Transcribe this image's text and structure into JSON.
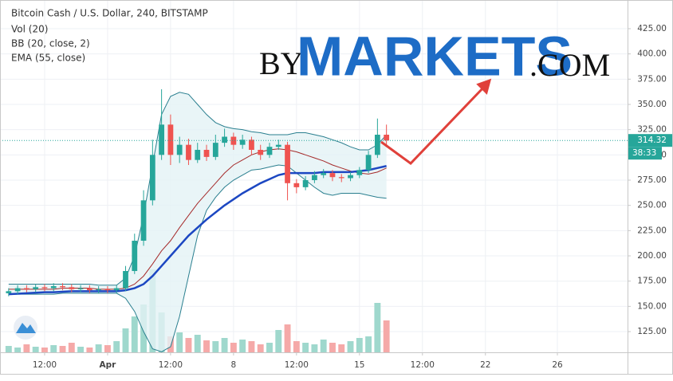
{
  "chart_data": {
    "type": "candlestick",
    "title": "Bitcoin Cash / U.S. Dollar, 240, BITSTAMP",
    "indicator_labels": [
      "Vol (20)",
      "BB (20, close, 2)",
      "EMA (55, close)"
    ],
    "watermark": {
      "prefix": "BY",
      "main": "MARKETS",
      "suffix": ".COM"
    },
    "current_price": 314.32,
    "countdown": "38:33",
    "x": [
      -5.5,
      -5,
      -4.5,
      -4,
      -3.5,
      -3,
      -2.5,
      -2,
      -1.5,
      -1,
      -0.5,
      0,
      0.5,
      1,
      1.5,
      2,
      2.5,
      3,
      3.5,
      4,
      4.5,
      5,
      5.5,
      6,
      6.5,
      7,
      7.5,
      8,
      8.5,
      9,
      9.5,
      10,
      10.5,
      11,
      11.5,
      12,
      12.5,
      13,
      13.5,
      14,
      14.5,
      15,
      15.5
    ],
    "open": [
      163,
      165,
      168,
      167,
      169,
      168,
      170,
      169,
      167,
      168,
      166,
      167,
      166,
      168,
      185,
      215,
      255,
      300,
      330,
      300,
      310,
      295,
      305,
      298,
      312,
      318,
      310,
      315,
      305,
      300,
      308,
      310,
      272,
      268,
      275,
      280,
      282,
      278,
      277,
      280,
      285,
      300,
      320
    ],
    "high": [
      168,
      171,
      171,
      172,
      172,
      173,
      173,
      172,
      171,
      171,
      170,
      170,
      171,
      190,
      222,
      265,
      315,
      365,
      340,
      318,
      316,
      312,
      310,
      320,
      326,
      322,
      320,
      318,
      310,
      312,
      315,
      313,
      276,
      279,
      284,
      286,
      285,
      281,
      283,
      288,
      304,
      336,
      330
    ],
    "low": [
      160,
      162,
      164,
      164,
      165,
      165,
      166,
      164,
      164,
      163,
      163,
      163,
      163,
      165,
      182,
      210,
      250,
      295,
      290,
      292,
      290,
      292,
      294,
      295,
      308,
      305,
      306,
      300,
      295,
      297,
      305,
      255,
      262,
      265,
      272,
      277,
      274,
      273,
      274,
      277,
      282,
      297,
      310
    ],
    "close": [
      165,
      168,
      167,
      169,
      168,
      170,
      169,
      167,
      168,
      166,
      167,
      166,
      168,
      185,
      215,
      255,
      300,
      330,
      300,
      310,
      295,
      305,
      298,
      312,
      318,
      310,
      315,
      305,
      300,
      308,
      310,
      272,
      268,
      275,
      280,
      282,
      278,
      277,
      280,
      285,
      300,
      320,
      314.32
    ],
    "volume": [
      8,
      6,
      10,
      7,
      6,
      9,
      8,
      12,
      7,
      6,
      10,
      9,
      14,
      30,
      45,
      60,
      104,
      50,
      20,
      25,
      18,
      22,
      15,
      14,
      18,
      12,
      16,
      14,
      10,
      12,
      28,
      35,
      14,
      12,
      10,
      16,
      12,
      10,
      14,
      18,
      20,
      62,
      40
    ],
    "volume_lim": [
      0,
      170
    ],
    "bb_upper": [
      172,
      172,
      172,
      172,
      172,
      172,
      172,
      172,
      172,
      172,
      171,
      171,
      171,
      178,
      200,
      240,
      290,
      340,
      358,
      362,
      360,
      350,
      340,
      332,
      328,
      326,
      325,
      323,
      322,
      320,
      320,
      320,
      322,
      322,
      320,
      318,
      315,
      312,
      308,
      305,
      305,
      310,
      320
    ],
    "bb_basis": [
      167,
      167,
      167,
      167,
      167,
      167,
      168,
      168,
      168,
      168,
      167,
      167,
      167,
      168,
      172,
      180,
      192,
      205,
      215,
      228,
      240,
      252,
      262,
      272,
      282,
      290,
      295,
      300,
      303,
      305,
      306,
      305,
      303,
      300,
      297,
      294,
      290,
      287,
      284,
      282,
      281,
      283,
      287
    ],
    "bb_lower": [
      162,
      162,
      162,
      162,
      162,
      162,
      163,
      163,
      163,
      163,
      163,
      163,
      163,
      158,
      145,
      125,
      108,
      105,
      110,
      140,
      180,
      220,
      245,
      258,
      268,
      275,
      280,
      285,
      286,
      288,
      290,
      289,
      282,
      275,
      268,
      262,
      260,
      262,
      262,
      262,
      260,
      258,
      257
    ],
    "ema": [
      162,
      162.5,
      163,
      163.5,
      164,
      164,
      164.5,
      165,
      165,
      165,
      165,
      165,
      165,
      166,
      168,
      172,
      180,
      190,
      200,
      210,
      220,
      228,
      236,
      243,
      250,
      256,
      262,
      267,
      272,
      276,
      280,
      282,
      282,
      282,
      282,
      283,
      283,
      283,
      283,
      284,
      285,
      287,
      289
    ],
    "colors": {
      "up": "#26a69a",
      "down": "#ef5350",
      "up_volume": "#9fd8cd",
      "down_volume": "#f5a9a8",
      "bb_band": "#2a7f8f",
      "bb_basis": "#a52a2a",
      "bb_fill": "#e3f2f5",
      "ema": "#1c47c2",
      "watermark": "#1d6cc6"
    },
    "xlim": [
      -5.98,
      28.9
    ],
    "ylim": [
      104.5,
      453.4
    ],
    "xticks": [
      {
        "value": -3.5,
        "label": "12:00"
      },
      {
        "value": 0,
        "label": "Apr"
      },
      {
        "value": 3.5,
        "label": "12:00"
      },
      {
        "value": 7,
        "label": "8"
      },
      {
        "value": 10.5,
        "label": "12:00"
      },
      {
        "value": 14,
        "label": "15"
      },
      {
        "value": 17.5,
        "label": "12:00"
      },
      {
        "value": 21,
        "label": "22"
      },
      {
        "value": 25,
        "label": "26"
      }
    ],
    "yticks": [
      {
        "value": 125,
        "label": "125.00"
      },
      {
        "value": 150,
        "label": "150.00"
      },
      {
        "value": 175,
        "label": "175.00"
      },
      {
        "value": 200,
        "label": "200.00"
      },
      {
        "value": 225,
        "label": "225.00"
      },
      {
        "value": 250,
        "label": "250.00"
      },
      {
        "value": 275,
        "label": "275.00"
      },
      {
        "value": 300,
        "label": "300.00"
      },
      {
        "value": 325,
        "label": "325.00"
      },
      {
        "value": 350,
        "label": "350.00"
      },
      {
        "value": 375,
        "label": "375.00"
      },
      {
        "value": 400,
        "label": "400.00"
      },
      {
        "value": 425,
        "label": "425.00"
      }
    ],
    "grid": true
  }
}
